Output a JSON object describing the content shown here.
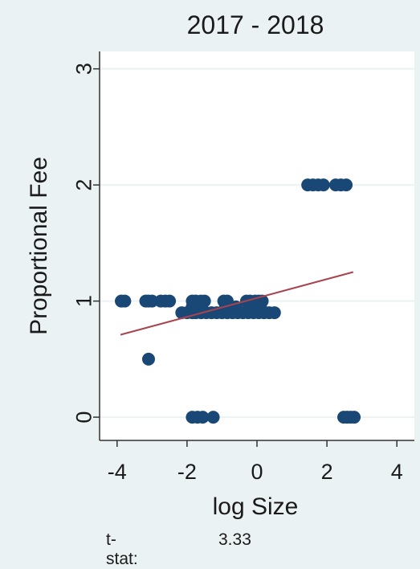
{
  "chart_data": {
    "type": "scatter",
    "title": "2017 - 2018",
    "xlabel": "log Size",
    "ylabel": "Proportional Fee",
    "xlim": [
      -4.5,
      4.5
    ],
    "ylim": [
      -0.2,
      3.15
    ],
    "xticks": [
      "-4",
      "-2",
      "0",
      "2",
      "4"
    ],
    "yticks": [
      "0",
      "1",
      "2",
      "3"
    ],
    "grid": true,
    "marker_color": "#1a4876",
    "fit_color": "#a8434f",
    "fit_line": {
      "x": [
        -3.9,
        2.75
      ],
      "y": [
        0.71,
        1.25
      ]
    },
    "points": [
      [
        -3.88,
        1
      ],
      [
        -3.78,
        1
      ],
      [
        -3.18,
        1
      ],
      [
        -3.1,
        1
      ],
      [
        -3.0,
        1
      ],
      [
        -2.75,
        1
      ],
      [
        -2.62,
        1
      ],
      [
        -2.5,
        1
      ],
      [
        -3.1,
        0.5
      ],
      [
        -2.15,
        0.9
      ],
      [
        -2.0,
        0.9
      ],
      [
        -1.85,
        0.9
      ],
      [
        -1.75,
        0.9
      ],
      [
        -1.6,
        0.9
      ],
      [
        -1.45,
        0.9
      ],
      [
        -1.3,
        0.9
      ],
      [
        -1.15,
        0.9
      ],
      [
        -1.0,
        0.9
      ],
      [
        -0.85,
        0.9
      ],
      [
        -0.7,
        0.9
      ],
      [
        -0.55,
        0.9
      ],
      [
        -0.4,
        0.9
      ],
      [
        -0.25,
        0.9
      ],
      [
        -0.1,
        0.9
      ],
      [
        0.05,
        0.9
      ],
      [
        0.2,
        0.9
      ],
      [
        0.35,
        0.9
      ],
      [
        0.5,
        0.9
      ],
      [
        -1.85,
        1
      ],
      [
        -1.75,
        1
      ],
      [
        -1.6,
        1
      ],
      [
        -1.5,
        1
      ],
      [
        -0.95,
        1
      ],
      [
        -0.85,
        1
      ],
      [
        -0.3,
        1
      ],
      [
        -0.2,
        1
      ],
      [
        -0.05,
        1
      ],
      [
        0.05,
        1
      ],
      [
        0.15,
        1
      ],
      [
        -1.85,
        0.95
      ],
      [
        -1.6,
        0.95
      ],
      [
        -0.9,
        0.95
      ],
      [
        -0.6,
        0.95
      ],
      [
        -0.15,
        0.95
      ],
      [
        0.1,
        0.95
      ],
      [
        -1.85,
        0
      ],
      [
        -1.7,
        0
      ],
      [
        -1.55,
        0
      ],
      [
        -1.25,
        0
      ],
      [
        1.45,
        2
      ],
      [
        1.6,
        2
      ],
      [
        1.75,
        2
      ],
      [
        1.9,
        2
      ],
      [
        2.25,
        2
      ],
      [
        2.4,
        2
      ],
      [
        2.55,
        2
      ],
      [
        2.48,
        0
      ],
      [
        2.58,
        0
      ],
      [
        2.68,
        0
      ],
      [
        2.78,
        0
      ]
    ]
  },
  "footer": {
    "label": "t-stat:",
    "value": "3.33"
  }
}
